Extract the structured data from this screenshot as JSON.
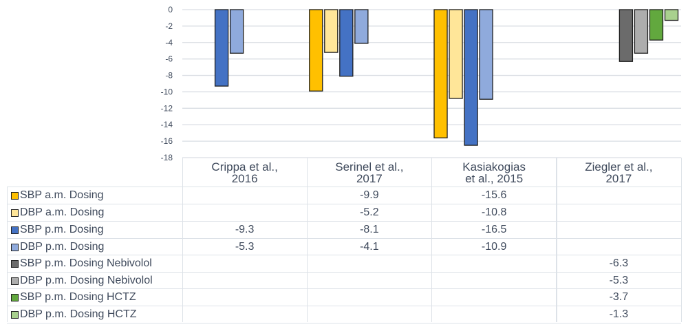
{
  "chart_data": {
    "type": "bar",
    "title": "",
    "categories": [
      "Crippa et al., 2016",
      "Serinel et al., 2017",
      "Kasiakogias et al., 2015",
      "Ziegler et al., 2017"
    ],
    "category_lines": [
      [
        "Crippa et al.,",
        "2016"
      ],
      [
        "Serinel et al.,",
        "2017"
      ],
      [
        "Kasiakogias",
        "et al., 2015"
      ],
      [
        "Ziegler et al.,",
        "2017"
      ]
    ],
    "ylim": [
      -18,
      0
    ],
    "yticks": [
      "0",
      "-2",
      "-4",
      "-6",
      "-8",
      "-10",
      "-12",
      "-14",
      "-16",
      "-18"
    ],
    "grid": true,
    "legend": "table-left",
    "series": [
      {
        "name": "SBP a.m. Dosing",
        "color": "#FFC000",
        "values": [
          null,
          -9.9,
          -15.6,
          null
        ]
      },
      {
        "name": "DBP a.m. Dosing",
        "color": "#FFE699",
        "values": [
          null,
          -5.2,
          -10.8,
          null
        ]
      },
      {
        "name": "SBP p.m. Dosing",
        "color": "#4472C4",
        "values": [
          -9.3,
          -8.1,
          -16.5,
          null
        ]
      },
      {
        "name": "DBP p.m. Dosing",
        "color": "#8FAADC",
        "values": [
          -5.3,
          -4.1,
          -10.9,
          null
        ]
      },
      {
        "name": "SBP p.m. Dosing Nebivolol",
        "color": "#6B6B6B",
        "values": [
          null,
          null,
          null,
          -6.3
        ]
      },
      {
        "name": "DBP p.m. Dosing Nebivolol",
        "color": "#ADADAD",
        "values": [
          null,
          null,
          null,
          -5.3
        ]
      },
      {
        "name": "SBP p.m. Dosing HCTZ",
        "color": "#62A83E",
        "values": [
          null,
          null,
          null,
          -3.7
        ]
      },
      {
        "name": "DBP p.m. Dosing HCTZ",
        "color": "#A9D18E",
        "values": [
          null,
          null,
          null,
          -1.3
        ]
      }
    ]
  }
}
